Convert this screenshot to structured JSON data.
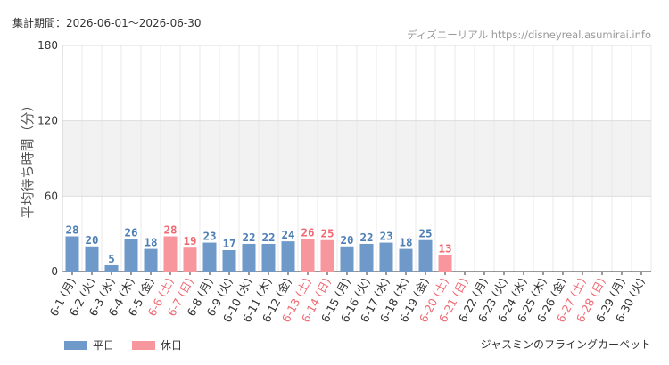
{
  "header": {
    "period": "集計期間：2026-06-01～2026-06-30",
    "credit": "ディズニーリアル https://disneyreal.asumirai.info"
  },
  "attraction": "ジャスミンのフライングカーペット",
  "legend": {
    "weekday_label": "平日",
    "holiday_label": "休日"
  },
  "colors": {
    "weekday": "#6e99c8",
    "holiday": "#f7969c",
    "weekday_text": "#4d7fb5",
    "holiday_text": "#f06a73",
    "band": "#f2f2f2",
    "grid": "#e8e8e8"
  },
  "chart_data": {
    "type": "bar",
    "ylabel": "平均待ち時間（分）",
    "ylim": [
      0,
      180
    ],
    "yticks": [
      0,
      60,
      120,
      180
    ],
    "categories": [
      "6-1 (月)",
      "6-2 (火)",
      "6-3 (水)",
      "6-4 (木)",
      "6-5 (金)",
      "6-6 (土)",
      "6-7 (日)",
      "6-8 (月)",
      "6-9 (火)",
      "6-10 (水)",
      "6-11 (木)",
      "6-12 (金)",
      "6-13 (土)",
      "6-14 (日)",
      "6-15 (月)",
      "6-16 (火)",
      "6-17 (水)",
      "6-18 (木)",
      "6-19 (金)",
      "6-20 (土)",
      "6-21 (日)",
      "6-22 (月)",
      "6-23 (火)",
      "6-24 (水)",
      "6-25 (木)",
      "6-26 (金)",
      "6-27 (土)",
      "6-28 (日)",
      "6-29 (月)",
      "6-30 (火)"
    ],
    "values": [
      28,
      20,
      5,
      26,
      18,
      28,
      19,
      23,
      17,
      22,
      22,
      24,
      26,
      25,
      20,
      22,
      23,
      18,
      25,
      13,
      null,
      null,
      null,
      null,
      null,
      null,
      null,
      null,
      null,
      null
    ],
    "holiday": [
      false,
      false,
      false,
      false,
      false,
      true,
      true,
      false,
      false,
      false,
      false,
      false,
      true,
      true,
      false,
      false,
      false,
      false,
      false,
      true,
      true,
      false,
      false,
      false,
      false,
      false,
      true,
      true,
      false,
      false
    ]
  }
}
